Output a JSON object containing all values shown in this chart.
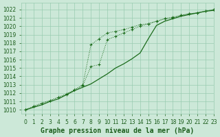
{
  "xlabel": "Graphe pression niveau de la mer (hPa)",
  "xlim": [
    -0.5,
    23
  ],
  "ylim": [
    1009.5,
    1022.8
  ],
  "yticks": [
    1010,
    1011,
    1012,
    1013,
    1014,
    1015,
    1016,
    1017,
    1018,
    1019,
    1020,
    1021,
    1022
  ],
  "xticks": [
    0,
    1,
    2,
    3,
    4,
    5,
    6,
    7,
    8,
    9,
    10,
    11,
    12,
    13,
    14,
    15,
    16,
    17,
    18,
    19,
    20,
    21,
    22,
    23
  ],
  "line1_y": [
    1010.0,
    1010.4,
    1010.8,
    1011.1,
    1011.5,
    1011.8,
    1012.4,
    1013.0,
    1017.8,
    1018.5,
    1019.2,
    1019.4,
    1019.6,
    1019.9,
    1020.2,
    1020.3,
    1020.6,
    1020.9,
    1021.0,
    1021.3,
    1021.5,
    1021.6,
    1021.8,
    1022.0
  ],
  "line2_y": [
    1010.0,
    1010.4,
    1010.8,
    1011.1,
    1011.5,
    1011.9,
    1012.4,
    1012.9,
    1015.2,
    1015.4,
    1018.4,
    1018.8,
    1019.2,
    1019.6,
    1020.0,
    1020.3,
    1020.6,
    1020.9,
    1021.1,
    1021.3,
    1021.5,
    1021.6,
    1021.8,
    1022.0
  ],
  "line3_y": [
    1010.0,
    1010.3,
    1010.6,
    1011.0,
    1011.3,
    1011.8,
    1012.3,
    1012.7,
    1013.1,
    1013.7,
    1014.3,
    1015.0,
    1015.5,
    1016.1,
    1016.8,
    1018.5,
    1020.1,
    1020.6,
    1020.9,
    1021.2,
    1021.4,
    1021.6,
    1021.8,
    1021.9
  ],
  "line_color": "#1a6b1a",
  "bg_color": "#cce8d8",
  "grid_color": "#99ccb0",
  "text_color": "#1a5c1a",
  "tick_label_fontsize": 5.5,
  "xlabel_fontsize": 7.0
}
